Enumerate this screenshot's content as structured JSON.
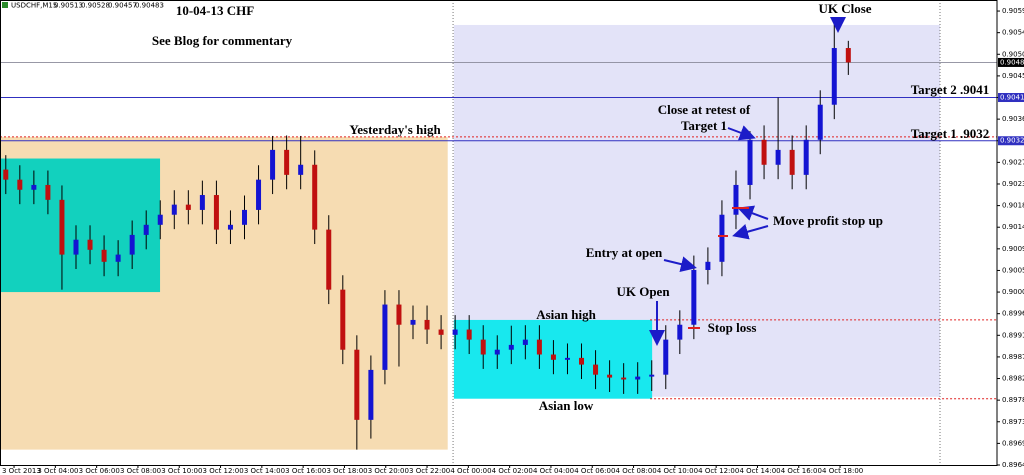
{
  "chart_data": {
    "type": "candlestick",
    "symbol": "USDCHF,M15",
    "title": "10-04-13  CHF",
    "subtitle": "See Blog for commentary",
    "up_color": "#1414d2",
    "down_color": "#c01010",
    "x": [
      1.6,
      2.28,
      2.96,
      3.64,
      4.32,
      5,
      5.68,
      6.36,
      7.04,
      7.72,
      8.4,
      9.08,
      9.76,
      10.44,
      11.12,
      11.8,
      12.48,
      13.16,
      13.84,
      14.52,
      15.2,
      15.88,
      16.56,
      17.24,
      17.92,
      18.6,
      19.28,
      19.96,
      20.64,
      21.32,
      22,
      22.68,
      23.36,
      24.04,
      24.72,
      25.4,
      26.08,
      26.76,
      27.44,
      28.12,
      28.8,
      29.48,
      30.16,
      30.84,
      31.52,
      32.2,
      32.88,
      33.56,
      34.24,
      34.92,
      35.6,
      36.28,
      36.96,
      37.64,
      38.32,
      39,
      39.68,
      40.36,
      41.04,
      41.72,
      42.4
    ],
    "open": [
      0.9026,
      0.90239,
      0.90218,
      0.90228,
      0.90197,
      0.90083,
      0.90114,
      0.90093,
      0.90068,
      0.90083,
      0.90124,
      0.90145,
      0.90166,
      0.90187,
      0.90176,
      0.90207,
      0.90135,
      0.90145,
      0.90176,
      0.90239,
      0.90301,
      0.90249,
      0.9027,
      0.90135,
      0.9001,
      0.89885,
      0.89739,
      0.89843,
      0.89979,
      0.89937,
      0.89947,
      0.89927,
      0.89916,
      0.89927,
      0.89906,
      0.89875,
      0.89885,
      0.89895,
      0.89906,
      0.89875,
      0.89864,
      0.89868,
      0.89854,
      0.89833,
      0.89827,
      0.89823,
      0.89829,
      0.89833,
      0.89906,
      0.89937,
      0.90051,
      0.90068,
      0.90166,
      0.90228,
      0.90322,
      0.9027,
      0.90301,
      0.90249,
      0.90322,
      0.90395,
      0.90513
    ],
    "high": [
      0.9029,
      0.90269,
      0.90258,
      0.90258,
      0.90227,
      0.90144,
      0.90144,
      0.90123,
      0.90113,
      0.90154,
      0.90175,
      0.90196,
      0.90217,
      0.90217,
      0.90237,
      0.90237,
      0.90175,
      0.90206,
      0.90269,
      0.9033,
      0.90331,
      0.9033,
      0.903,
      0.90165,
      0.9004,
      0.89915,
      0.89873,
      0.90009,
      0.90009,
      0.89977,
      0.89977,
      0.89957,
      0.89957,
      0.89957,
      0.89936,
      0.89915,
      0.89935,
      0.89936,
      0.89936,
      0.89905,
      0.89898,
      0.89898,
      0.89884,
      0.89863,
      0.89857,
      0.89859,
      0.89863,
      0.89936,
      0.89967,
      0.90081,
      0.90098,
      0.90196,
      0.90258,
      0.9034,
      0.90352,
      0.9041,
      0.90331,
      0.90352,
      0.90425,
      0.9057,
      0.90528
    ],
    "low": [
      0.90209,
      0.90188,
      0.90188,
      0.90167,
      0.9001,
      0.90053,
      0.90063,
      0.90038,
      0.90038,
      0.90053,
      0.90094,
      0.90115,
      0.90136,
      0.90146,
      0.90146,
      0.90105,
      0.90105,
      0.90115,
      0.90146,
      0.90209,
      0.90219,
      0.90219,
      0.90105,
      0.8998,
      0.89855,
      0.89677,
      0.897,
      0.89813,
      0.8985,
      0.89907,
      0.89897,
      0.89886,
      0.89886,
      0.89876,
      0.89845,
      0.89845,
      0.89855,
      0.89865,
      0.89845,
      0.89834,
      0.89834,
      0.89824,
      0.89803,
      0.89797,
      0.89793,
      0.89793,
      0.89799,
      0.89803,
      0.89876,
      0.89907,
      0.90021,
      0.90038,
      0.90136,
      0.90198,
      0.9024,
      0.9024,
      0.90219,
      0.90219,
      0.90292,
      0.90365,
      0.90457
    ],
    "close": [
      0.90239,
      0.90218,
      0.90228,
      0.90197,
      0.90083,
      0.90114,
      0.90093,
      0.90068,
      0.90083,
      0.90124,
      0.90145,
      0.90166,
      0.90187,
      0.90176,
      0.90207,
      0.90135,
      0.90145,
      0.90176,
      0.90239,
      0.90301,
      0.90249,
      0.9027,
      0.90135,
      0.9001,
      0.89885,
      0.89739,
      0.89843,
      0.89979,
      0.89937,
      0.89947,
      0.89927,
      0.89916,
      0.89927,
      0.89906,
      0.89875,
      0.89885,
      0.89895,
      0.89906,
      0.89875,
      0.89864,
      0.89868,
      0.89854,
      0.89833,
      0.89827,
      0.89823,
      0.89829,
      0.89833,
      0.89906,
      0.89937,
      0.90051,
      0.90068,
      0.90166,
      0.90228,
      0.90322,
      0.9027,
      0.90301,
      0.90249,
      0.90322,
      0.90395,
      0.90513,
      0.90483
    ],
    "xlim": [
      1.32,
      49.6
    ],
    "ylim": [
      0.89645,
      0.90613
    ],
    "xticks": [
      {
        "value": 2,
        "label": "3 Oct 2013"
      },
      {
        "value": 4,
        "label": "3 Oct 04:00"
      },
      {
        "value": 6,
        "label": "3 Oct 06:00"
      },
      {
        "value": 8,
        "label": "3 Oct 08:00"
      },
      {
        "value": 10,
        "label": "3 Oct 10:00"
      },
      {
        "value": 12,
        "label": "3 Oct 12:00"
      },
      {
        "value": 14,
        "label": "3 Oct 14:00"
      },
      {
        "value": 16,
        "label": "3 Oct 16:00"
      },
      {
        "value": 18,
        "label": "3 Oct 18:00"
      },
      {
        "value": 20,
        "label": "3 Oct 20:00"
      },
      {
        "value": 22,
        "label": "3 Oct 22:00"
      },
      {
        "value": 24,
        "label": "4 Oct 00:00"
      },
      {
        "value": 26,
        "label": "4 Oct 02:00"
      },
      {
        "value": 28,
        "label": "4 Oct 04:00"
      },
      {
        "value": 30,
        "label": "4 Oct 06:00"
      },
      {
        "value": 32,
        "label": "4 Oct 08:00"
      },
      {
        "value": 34,
        "label": "4 Oct 10:00"
      },
      {
        "value": 36,
        "label": "4 Oct 12:00"
      },
      {
        "value": 38,
        "label": "4 Oct 14:00"
      },
      {
        "value": 40,
        "label": "4 Oct 16:00"
      },
      {
        "value": 42,
        "label": "4 Oct 18:00"
      }
    ],
    "yticks": [
      {
        "value": 0.9059,
        "label": "0.90590"
      },
      0.90545,
      {
        "value": 0.905,
        "label": "0.90500"
      },
      0.90455,
      {
        "value": 0.9041,
        "label": "0.90410"
      },
      0.90365,
      {
        "value": 0.9032,
        "label": "0.90320"
      },
      0.90275,
      0.9023,
      0.90185,
      {
        "value": 0.9014,
        "label": "0.90140"
      },
      0.90095,
      {
        "value": 0.9005,
        "label": "0.90050"
      },
      0.90005,
      {
        "value": 0.8996,
        "label": "0.89960"
      },
      0.89915,
      {
        "value": 0.8987,
        "label": "0.89870"
      },
      0.89825,
      {
        "value": 0.8978,
        "label": "0.89780"
      },
      0.89735,
      {
        "value": 0.8969,
        "label": "0.89690"
      },
      0.89645
    ],
    "zones": [
      {
        "x": [
          1.32,
          23.0
        ],
        "y": [
          0.89677,
          0.90328
        ],
        "color": "#f6dcb2"
      },
      {
        "x": [
          23.3,
          46.84
        ],
        "y": [
          0.89787,
          0.90561
        ],
        "color": "#e3e3f8"
      },
      {
        "x": [
          1.32,
          9.07
        ],
        "y": [
          0.90005,
          0.90283
        ],
        "color": "#12d1be"
      },
      {
        "x": [
          23.3,
          32.9
        ],
        "y": [
          0.89783,
          0.89947
        ],
        "color": "#18e8ee"
      }
    ],
    "separators": [
      23.26,
      46.84
    ],
    "levels": [
      {
        "value": 0.9041,
        "x0": 1.32,
        "color": "#3030c0",
        "dash": "none",
        "label": "0.90410"
      },
      {
        "value": 0.9032,
        "x0": 1.32,
        "color": "#3030c0",
        "dash": "none",
        "label": "0.90320"
      },
      {
        "value": 0.90328,
        "x0": 1.32,
        "color": "#e02020",
        "dash": "2 2"
      },
      {
        "value": 0.89947,
        "x0": 32.8,
        "color": "#e02020",
        "dash": "2 2"
      },
      {
        "value": 0.89783,
        "x0": 32.8,
        "color": "#e02020",
        "dash": "2 2"
      }
    ],
    "annotations": [
      "Yesterday's high",
      "UK Close",
      "Target 2  .9041",
      "Target 1  .9032",
      "Close at retest of",
      "Target 1",
      "Entry at open",
      "Move profit stop up",
      "UK Open",
      "Stop loss",
      "Asian high",
      "Asian low"
    ]
  }
}
